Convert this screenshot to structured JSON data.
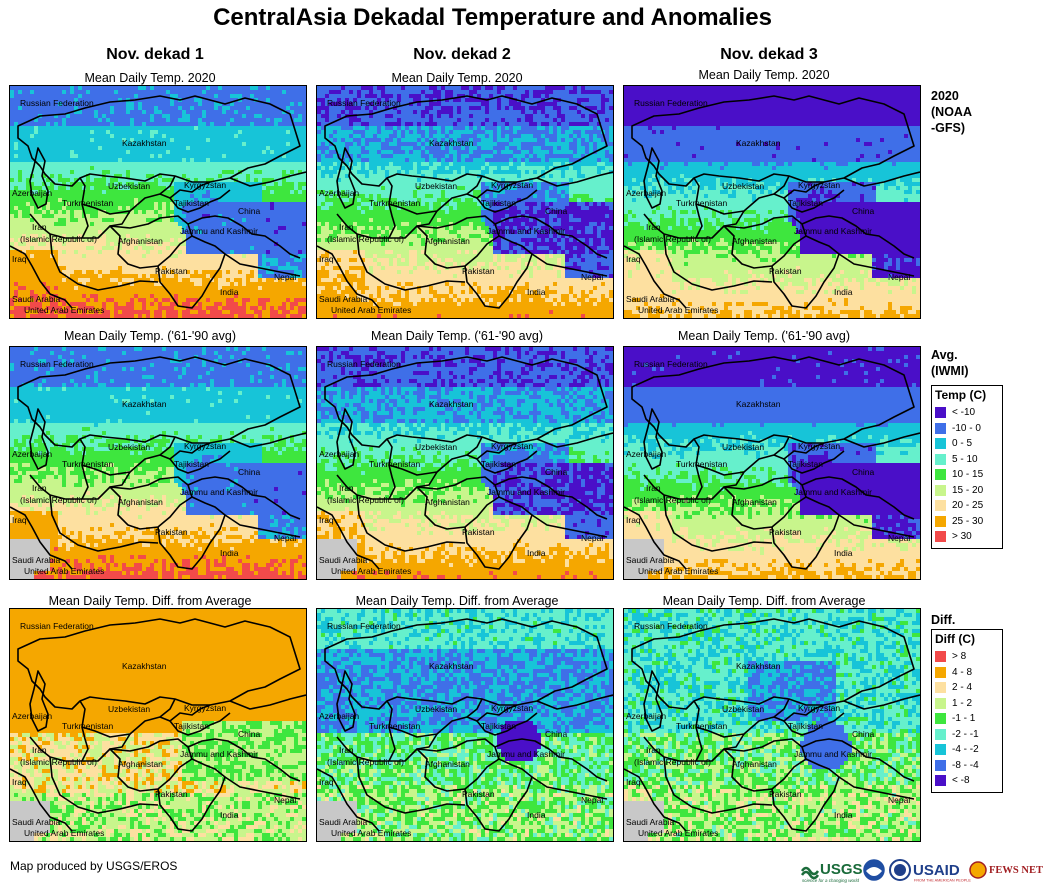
{
  "title": "CentralAsia Dekadal Temperature and Anomalies",
  "columns": [
    "Nov. dekad 1",
    "Nov. dekad 2",
    "Nov. dekad 3"
  ],
  "row_titles": {
    "current": "Mean Daily Temp. 2020",
    "average": "Mean Daily Temp. ('61-'90 avg)",
    "diff": "Mean Daily Temp. Diff. from Average"
  },
  "row_labels": {
    "current": [
      "2020",
      "(NOAA",
      "-GFS)"
    ],
    "average": [
      "Avg.",
      "(IWMI)"
    ],
    "diff": [
      "Diff."
    ]
  },
  "map_labels": {
    "russia": "Russian Federation",
    "kazakhstan": "Kazakhstan",
    "uzbekistan": "Uzbekistan",
    "kyrgyzstan": "Kyrgyzstan",
    "tajikistan": "Tajikistan",
    "turkmenistan": "Turkmenistan",
    "azerbaijan": "Azerbaijan",
    "china": "China",
    "iran1": "Iran",
    "iran2": "(Islamic Republic of)",
    "afghanistan": "Afghanistan",
    "jammu": "Jammu and Kashmir",
    "iraq": "Iraq",
    "pakistan": "Pakistan",
    "india": "India",
    "nepal": "Nepal",
    "saudi": "Saudi Arabia",
    "uae": "United Arab Emirates"
  },
  "temp_legend": {
    "title": "Temp (C)",
    "items": [
      {
        "label": "< -10",
        "color": "#4a0fc8"
      },
      {
        "label": "-10 - 0",
        "color": "#3f6fe8"
      },
      {
        "label": "0 - 5",
        "color": "#17c4d8"
      },
      {
        "label": "5 - 10",
        "color": "#66f0cc"
      },
      {
        "label": "10 - 15",
        "color": "#3ee63e"
      },
      {
        "label": "15 - 20",
        "color": "#c8f58c"
      },
      {
        "label": "20 - 25",
        "color": "#fde0a0"
      },
      {
        "label": "25 - 30",
        "color": "#f5a700"
      },
      {
        "label": "> 30",
        "color": "#f24a4a"
      }
    ]
  },
  "diff_legend": {
    "title": "Diff (C)",
    "items": [
      {
        "label": "> 8",
        "color": "#f24a4a"
      },
      {
        "label": "4 - 8",
        "color": "#f5a700"
      },
      {
        "label": "2 - 4",
        "color": "#fde0a0"
      },
      {
        "label": "1 - 2",
        "color": "#c8f58c"
      },
      {
        "label": "-1 - 1",
        "color": "#3ee63e"
      },
      {
        "label": "-2 - -1",
        "color": "#66f0cc"
      },
      {
        "label": "-4 - -2",
        "color": "#17c4d8"
      },
      {
        "label": "-8 - -4",
        "color": "#3f6fe8"
      },
      {
        "label": "< -8",
        "color": "#4a0fc8"
      }
    ]
  },
  "credit": "Map produced by USGS/EROS",
  "logos": {
    "usgs": "USGS",
    "usgs_tagline": "science for a changing world",
    "usaid": "USAID",
    "usaid_tagline": "FROM THE AMERICAN PEOPLE",
    "fewsnet": "FEWS NET"
  },
  "colors": {
    "no_data": "#c8c8c8",
    "border": "#000000"
  }
}
